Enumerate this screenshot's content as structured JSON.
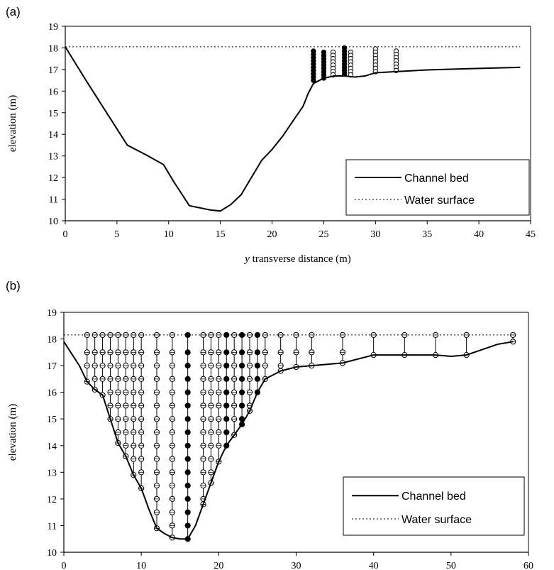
{
  "chart_data": [
    {
      "panel_label": "(a)",
      "type": "line",
      "xlabel_italic": "y",
      "xlabel": "transverse distance (m)",
      "ylabel": "elevation (m)",
      "xlim": [
        0,
        45
      ],
      "ylim": [
        10,
        19
      ],
      "x_ticks": [
        0,
        5,
        10,
        15,
        20,
        25,
        30,
        35,
        40,
        45
      ],
      "y_ticks": [
        10,
        11,
        12,
        13,
        14,
        15,
        16,
        17,
        18,
        19
      ],
      "grid": false,
      "legend_position": "bottom-right",
      "series": [
        {
          "name": "Channel bed",
          "style": "solid",
          "x": [
            0,
            2,
            4,
            6,
            8,
            9.5,
            10.5,
            12,
            13,
            14,
            15,
            16,
            17,
            18,
            19,
            20,
            21,
            22,
            23,
            23.5,
            24,
            25,
            26,
            27,
            28,
            29,
            30,
            32,
            35,
            40,
            44
          ],
          "y": [
            18.05,
            16.5,
            15,
            13.5,
            13,
            12.6,
            11.8,
            10.7,
            10.6,
            10.5,
            10.45,
            10.75,
            11.2,
            12,
            12.8,
            13.3,
            13.9,
            14.6,
            15.3,
            15.9,
            16.35,
            16.6,
            16.7,
            16.7,
            16.65,
            16.7,
            16.85,
            16.9,
            16.98,
            17.05,
            17.1
          ]
        },
        {
          "name": "Water surface",
          "style": "dotted",
          "x": [
            0,
            44
          ],
          "y": [
            18.05,
            18.05
          ]
        }
      ],
      "verticals": [
        {
          "x": 24.0,
          "top": 17.85,
          "bottom": 16.4,
          "filled": true
        },
        {
          "x": 25.0,
          "top": 17.8,
          "bottom": 16.6,
          "filled": true
        },
        {
          "x": 25.9,
          "top": 17.8,
          "bottom": 16.7,
          "filled": false
        },
        {
          "x": 27.0,
          "top": 18.0,
          "bottom": 16.7,
          "filled": true
        },
        {
          "x": 27.6,
          "top": 17.8,
          "bottom": 16.7,
          "filled": false
        },
        {
          "x": 30.0,
          "top": 17.95,
          "bottom": 16.85,
          "filled": false
        },
        {
          "x": 32.0,
          "top": 17.85,
          "bottom": 16.9,
          "filled": false
        }
      ]
    },
    {
      "panel_label": "(b)",
      "type": "line",
      "xlabel_italic": "y",
      "xlabel": "transverse distance (m)",
      "ylabel": "elevation (m)",
      "xlim": [
        0,
        60
      ],
      "ylim": [
        10,
        19
      ],
      "x_ticks": [
        0,
        10,
        20,
        30,
        40,
        50,
        60
      ],
      "y_ticks": [
        10,
        11,
        12,
        13,
        14,
        15,
        16,
        17,
        18,
        19
      ],
      "grid": false,
      "legend_position": "bottom-right",
      "series": [
        {
          "name": "Channel bed",
          "style": "solid",
          "x": [
            0,
            2,
            3,
            4,
            5,
            6,
            7,
            8,
            9,
            10,
            11,
            12,
            13,
            14,
            15,
            16,
            17,
            18,
            19,
            20,
            21,
            22,
            23,
            24,
            25,
            26,
            28,
            30,
            32,
            36,
            40,
            44,
            48,
            50,
            52,
            54,
            56,
            58
          ],
          "y": [
            17.9,
            17.0,
            16.4,
            16.1,
            15.9,
            15.0,
            14.1,
            13.6,
            12.9,
            12.4,
            11.6,
            10.9,
            10.7,
            10.55,
            10.5,
            10.5,
            11.0,
            11.8,
            12.6,
            13.4,
            14.0,
            14.4,
            14.8,
            15.3,
            16.0,
            16.5,
            16.8,
            16.95,
            17.0,
            17.1,
            17.4,
            17.4,
            17.4,
            17.35,
            17.4,
            17.6,
            17.8,
            17.9
          ]
        },
        {
          "name": "Water surface",
          "style": "dotted",
          "x": [
            0,
            58
          ],
          "y": [
            18.15,
            18.15
          ]
        }
      ],
      "verticals": [
        {
          "x": 3,
          "top": 18.15,
          "bottom": 16.4,
          "filled": false
        },
        {
          "x": 4,
          "top": 18.15,
          "bottom": 16.1,
          "filled": false
        },
        {
          "x": 5,
          "top": 18.15,
          "bottom": 15.9,
          "filled": false
        },
        {
          "x": 6,
          "top": 18.15,
          "bottom": 15.0,
          "filled": false
        },
        {
          "x": 7,
          "top": 18.15,
          "bottom": 14.1,
          "filled": false
        },
        {
          "x": 8,
          "top": 18.15,
          "bottom": 13.6,
          "filled": false
        },
        {
          "x": 9,
          "top": 18.15,
          "bottom": 12.9,
          "filled": false
        },
        {
          "x": 10,
          "top": 18.15,
          "bottom": 12.4,
          "filled": false
        },
        {
          "x": 12,
          "top": 18.15,
          "bottom": 10.9,
          "filled": false
        },
        {
          "x": 14,
          "top": 18.15,
          "bottom": 10.55,
          "filled": false
        },
        {
          "x": 16,
          "top": 18.15,
          "bottom": 10.5,
          "filled": true
        },
        {
          "x": 18,
          "top": 18.15,
          "bottom": 11.8,
          "filled": false
        },
        {
          "x": 19,
          "top": 18.15,
          "bottom": 12.6,
          "filled": false
        },
        {
          "x": 20,
          "top": 18.15,
          "bottom": 13.4,
          "filled": false
        },
        {
          "x": 21,
          "top": 18.15,
          "bottom": 14.0,
          "filled": true
        },
        {
          "x": 22,
          "top": 18.15,
          "bottom": 14.4,
          "filled": false
        },
        {
          "x": 23,
          "top": 18.15,
          "bottom": 14.8,
          "filled": true
        },
        {
          "x": 24,
          "top": 18.15,
          "bottom": 15.3,
          "filled": false
        },
        {
          "x": 25,
          "top": 18.15,
          "bottom": 16.0,
          "filled": true
        },
        {
          "x": 26,
          "top": 18.15,
          "bottom": 16.5,
          "filled": false
        },
        {
          "x": 28,
          "top": 18.15,
          "bottom": 16.8,
          "filled": false
        },
        {
          "x": 30,
          "top": 18.15,
          "bottom": 16.95,
          "filled": false
        },
        {
          "x": 32,
          "top": 18.15,
          "bottom": 17.0,
          "filled": false
        },
        {
          "x": 36,
          "top": 18.15,
          "bottom": 17.1,
          "filled": false
        },
        {
          "x": 40,
          "top": 18.15,
          "bottom": 17.4,
          "filled": false
        },
        {
          "x": 44,
          "top": 18.15,
          "bottom": 17.4,
          "filled": false
        },
        {
          "x": 48,
          "top": 18.15,
          "bottom": 17.4,
          "filled": false
        },
        {
          "x": 52,
          "top": 18.15,
          "bottom": 17.4,
          "filled": false
        },
        {
          "x": 58,
          "top": 18.15,
          "bottom": 17.9,
          "filled": false
        }
      ]
    }
  ]
}
